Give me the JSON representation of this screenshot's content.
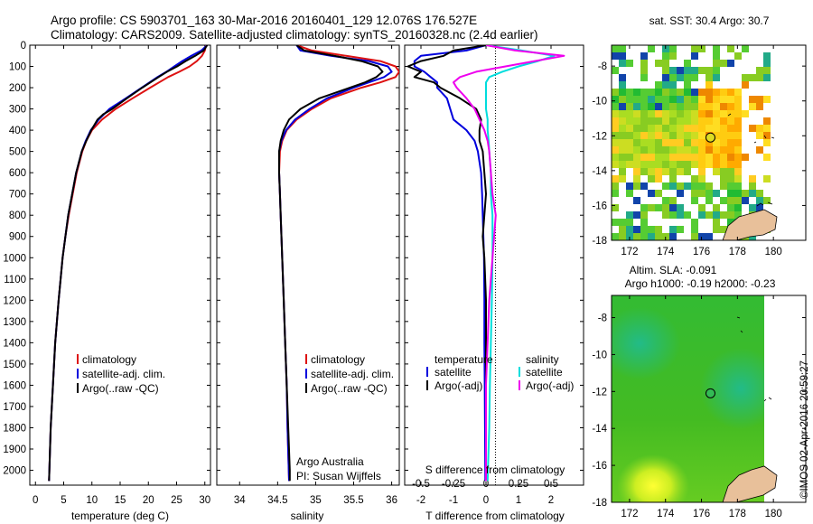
{
  "header": {
    "line1": "Argo profile: CS 5903701_163 30-Mar-2016 20160401_129 12.076S 176.527E",
    "line2": "Climatology: CARS2009. Satellite-adjusted climatology: synTS_20160328.nc (2.4d earlier)"
  },
  "colors": {
    "climatology": "#dd1111",
    "satellite": "#0000dd",
    "argo": "#000000",
    "sal_satellite": "#00dddd",
    "sal_argo": "#ee00ee"
  },
  "chart_data": [
    {
      "type": "line",
      "id": "temperature",
      "xlabel": "temperature (deg C)",
      "xlim": [
        -1,
        31
      ],
      "xticks": [
        0,
        5,
        10,
        15,
        20,
        25,
        30
      ],
      "ylim": [
        2070,
        0
      ],
      "yticks": [
        0,
        100,
        200,
        300,
        400,
        500,
        600,
        700,
        800,
        900,
        1000,
        1100,
        1200,
        1300,
        1400,
        1500,
        1600,
        1700,
        1800,
        1900,
        2000
      ],
      "legend": [
        "climatology",
        "satellite-adj. clim.",
        "Argo(..raw -QC)"
      ],
      "series": [
        {
          "name": "climatology",
          "y": [
            0,
            25,
            50,
            75,
            100,
            125,
            150,
            200,
            250,
            300,
            350,
            400,
            450,
            500,
            600,
            700,
            800,
            900,
            1000,
            1200,
            1400,
            1600,
            1800,
            2050
          ],
          "x": [
            30.2,
            30.0,
            29.5,
            28.6,
            27.3,
            25.5,
            23.5,
            20.3,
            17.2,
            14.2,
            11.8,
            10.0,
            9.0,
            8.3,
            7.3,
            6.6,
            5.9,
            5.3,
            4.8,
            4.1,
            3.5,
            3.1,
            2.7,
            2.4
          ]
        },
        {
          "name": "satellite-adj. clim.",
          "y": [
            0,
            25,
            50,
            75,
            100,
            125,
            150,
            200,
            250,
            300,
            350,
            400,
            450,
            500,
            600,
            700,
            800,
            900,
            1000,
            1200,
            1400,
            1600,
            1800,
            2050
          ],
          "x": [
            30.4,
            29.4,
            27.6,
            26.0,
            24.6,
            23.2,
            21.6,
            18.8,
            16.0,
            13.1,
            11.2,
            9.8,
            8.9,
            8.2,
            7.2,
            6.5,
            5.8,
            5.3,
            4.8,
            4.1,
            3.5,
            3.1,
            2.7,
            2.4
          ]
        },
        {
          "name": "Argo(..raw -QC)",
          "y": [
            0,
            25,
            50,
            75,
            100,
            125,
            150,
            200,
            250,
            300,
            325,
            350,
            400,
            450,
            500,
            600,
            700,
            800,
            900,
            1000,
            1200,
            1400,
            1600,
            1800,
            2050
          ],
          "x": [
            30.4,
            29.8,
            28.3,
            26.6,
            25.1,
            23.3,
            21.8,
            18.9,
            16.2,
            13.6,
            12.0,
            11.0,
            9.9,
            9.0,
            8.2,
            7.2,
            6.5,
            5.8,
            5.3,
            4.8,
            4.1,
            3.5,
            3.1,
            2.7,
            2.4
          ]
        }
      ]
    },
    {
      "type": "line",
      "id": "salinity",
      "xlabel": "salinity",
      "xlim": [
        33.7,
        36.1
      ],
      "xticks": [
        34,
        34.5,
        35,
        35.5,
        36
      ],
      "xticklabels": [
        "34",
        "34.5",
        "35",
        "35.5",
        "36"
      ],
      "ylim": [
        2070,
        0
      ],
      "legend": [
        "climatology",
        "satellite-adj. clim.",
        "Argo(..raw -QC)"
      ],
      "annotation": [
        "Argo Australia",
        "PI: Susan Wijffels"
      ],
      "series": [
        {
          "name": "climatology",
          "y": [
            0,
            25,
            50,
            75,
            100,
            125,
            150,
            175,
            200,
            250,
            300,
            350,
            400,
            450,
            500,
            600,
            700,
            800,
            1000,
            1200,
            1400,
            1600,
            1800,
            2050
          ],
          "x": [
            34.75,
            34.95,
            35.4,
            35.85,
            36.05,
            36.1,
            36.05,
            35.85,
            35.6,
            35.2,
            34.95,
            34.75,
            34.62,
            34.56,
            34.53,
            34.52,
            34.53,
            34.54,
            34.56,
            34.58,
            34.6,
            34.62,
            34.63,
            34.65
          ]
        },
        {
          "name": "satellite-adj. clim.",
          "y": [
            0,
            25,
            50,
            75,
            100,
            125,
            150,
            175,
            200,
            250,
            300,
            350,
            400,
            450,
            500,
            600,
            700,
            800,
            1000,
            1200,
            1400,
            1600,
            1800,
            2050
          ],
          "x": [
            34.75,
            34.8,
            35.2,
            35.7,
            35.95,
            36.0,
            35.9,
            35.7,
            35.5,
            35.15,
            34.92,
            34.73,
            34.61,
            34.55,
            34.52,
            34.52,
            34.53,
            34.54,
            34.56,
            34.58,
            34.6,
            34.62,
            34.63,
            34.65
          ]
        },
        {
          "name": "Argo(..raw -QC)",
          "y": [
            0,
            25,
            50,
            75,
            100,
            125,
            150,
            175,
            200,
            250,
            300,
            350,
            400,
            450,
            500,
            600,
            700,
            800,
            1000,
            1200,
            1400,
            1600,
            1800,
            2000,
            2050
          ],
          "x": [
            34.75,
            34.85,
            35.25,
            35.6,
            35.82,
            35.88,
            35.8,
            35.65,
            35.45,
            35.05,
            34.8,
            34.65,
            34.58,
            34.54,
            34.52,
            34.52,
            34.53,
            34.54,
            34.56,
            34.58,
            34.6,
            34.62,
            34.64,
            34.66,
            34.66
          ]
        }
      ]
    },
    {
      "type": "line",
      "id": "difference",
      "xlabel": "T difference from climatology",
      "xlabel_top": "S difference from climatology",
      "xlim": [
        -2.5,
        3
      ],
      "xticks": [
        -2,
        -1,
        0,
        1,
        2
      ],
      "xticks_top": [
        -0.5,
        -0.25,
        0,
        0.25,
        0.5
      ],
      "xticklabels_top": [
        "-0.5",
        "-0.25",
        "0",
        "0.25",
        "0.5"
      ],
      "ylim": [
        2070,
        0
      ],
      "legend_left_title": "temperature",
      "legend_right_title": "salinity",
      "legend": [
        "satellite",
        "Argo(-adj)",
        "satellite",
        "Argo(-adj)"
      ],
      "series": [
        {
          "name": "T satellite",
          "y": [
            0,
            25,
            50,
            75,
            100,
            125,
            150,
            175,
            200,
            250,
            300,
            350,
            400,
            450,
            500,
            600,
            700,
            800,
            900,
            1000,
            1200,
            1400,
            1600,
            1800,
            2050
          ],
          "x": [
            0.0,
            -0.6,
            -2.0,
            -2.2,
            -2.2,
            -1.9,
            -1.7,
            -1.5,
            -1.5,
            -1.2,
            -1.1,
            -1.0,
            -0.6,
            -0.35,
            -0.25,
            -0.15,
            -0.12,
            -0.1,
            -0.08,
            -0.06,
            -0.05,
            -0.05,
            -0.04,
            -0.03,
            -0.02
          ]
        },
        {
          "name": "T Argo(-adj)",
          "y": [
            0,
            25,
            50,
            75,
            100,
            125,
            150,
            175,
            200,
            250,
            300,
            350,
            400,
            450,
            500,
            600,
            700,
            800,
            900,
            1000,
            1200,
            1400,
            1600,
            1800,
            2050
          ],
          "x": [
            0.0,
            -1.0,
            -1.3,
            -2.0,
            -2.4,
            -2.0,
            -2.2,
            -1.6,
            -1.4,
            -0.8,
            -0.3,
            -0.15,
            -0.2,
            -0.2,
            -0.1,
            -0.05,
            0.0,
            -0.05,
            -0.1,
            -0.05,
            0.0,
            0.0,
            0.0,
            0.0,
            0.0
          ]
        },
        {
          "name": "S satellite",
          "y": [
            0,
            25,
            50,
            75,
            100,
            125,
            150,
            175,
            200,
            250,
            300,
            350,
            400,
            450,
            500,
            600,
            700,
            800,
            1000,
            1200,
            1400,
            1600,
            1800,
            2050
          ],
          "x": [
            0.0,
            1.1,
            2.1,
            1.6,
            1.0,
            0.5,
            0.1,
            0.0,
            0.0,
            0.0,
            0.0,
            0.05,
            0.05,
            0.08,
            0.1,
            0.15,
            0.15,
            0.2,
            0.2,
            0.18,
            0.15,
            0.12,
            0.1,
            0.05
          ]
        },
        {
          "name": "S Argo(-adj)",
          "y": [
            0,
            25,
            50,
            75,
            100,
            125,
            150,
            175,
            200,
            250,
            300,
            350,
            400,
            450,
            500,
            600,
            700,
            800,
            1000,
            1200,
            1400,
            1600,
            1800,
            2050
          ],
          "x": [
            0.0,
            0.9,
            2.4,
            1.5,
            0.6,
            -0.3,
            -0.8,
            -1.0,
            -0.9,
            -0.6,
            -0.35,
            -0.2,
            -0.05,
            0.05,
            0.1,
            0.15,
            0.2,
            0.3,
            0.2,
            0.1,
            0.05,
            0.0,
            0.0,
            0.0
          ]
        }
      ]
    },
    {
      "type": "heatmap",
      "id": "sst-map",
      "title": "sat. SST: 30.4  Argo: 30.7",
      "xticks": [
        172,
        174,
        176,
        178,
        180
      ],
      "yticks": [
        -8,
        -10,
        -12,
        -14,
        -16,
        -18
      ],
      "xlim": [
        171,
        181.8
      ],
      "ylim": [
        -18,
        -6.8
      ],
      "marker": {
        "lon": 176.5,
        "lat": -12.1
      }
    },
    {
      "type": "heatmap",
      "id": "sla-map",
      "title": [
        "Altim. SLA: -0.091",
        "Argo h1000: -0.19 h2000: -0.23"
      ],
      "xticks": [
        172,
        174,
        176,
        178,
        180
      ],
      "yticks": [
        -8,
        -10,
        -12,
        -14,
        -16,
        -18
      ],
      "xlim": [
        171,
        181.8
      ],
      "ylim": [
        -18,
        -6.8
      ],
      "marker": {
        "lon": 176.5,
        "lat": -12.1
      }
    }
  ],
  "footer_credit": "©IMOS 02-Apr-2016 20:59:27"
}
